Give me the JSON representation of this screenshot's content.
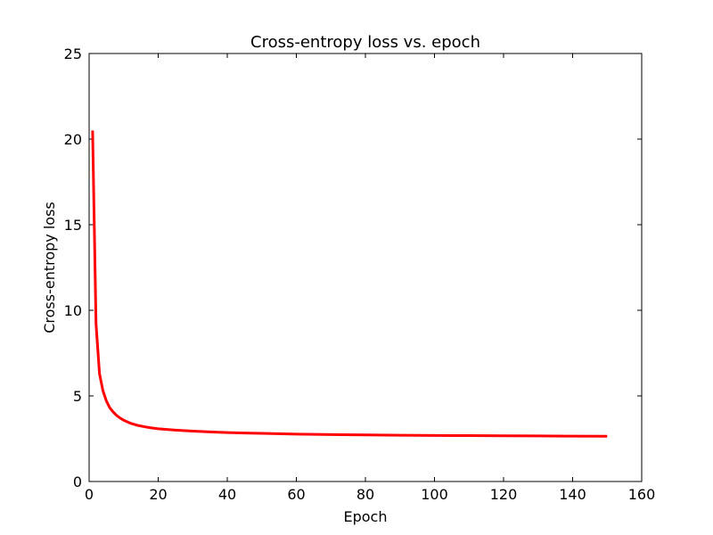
{
  "chart_data": {
    "type": "line",
    "title": "Cross-entropy loss vs. epoch",
    "xlabel": "Epoch",
    "ylabel": "Cross-entropy loss",
    "xlim": [
      0,
      160
    ],
    "ylim": [
      0,
      25
    ],
    "xticks": [
      0,
      20,
      40,
      60,
      80,
      100,
      120,
      140,
      160
    ],
    "yticks": [
      0,
      5,
      10,
      15,
      20,
      25
    ],
    "grid": false,
    "series": [
      {
        "color": "#ff0000",
        "x": [
          1,
          2,
          3,
          4,
          5,
          6,
          7,
          8,
          9,
          10,
          12,
          14,
          16,
          18,
          20,
          25,
          30,
          35,
          40,
          45,
          50,
          60,
          70,
          80,
          90,
          100,
          110,
          120,
          130,
          140,
          150
        ],
        "y": [
          20.5,
          9.2,
          6.3,
          5.3,
          4.7,
          4.3,
          4.05,
          3.85,
          3.7,
          3.58,
          3.4,
          3.28,
          3.2,
          3.13,
          3.08,
          3.0,
          2.94,
          2.9,
          2.86,
          2.83,
          2.81,
          2.77,
          2.74,
          2.72,
          2.7,
          2.69,
          2.68,
          2.67,
          2.66,
          2.65,
          2.64
        ]
      }
    ]
  }
}
